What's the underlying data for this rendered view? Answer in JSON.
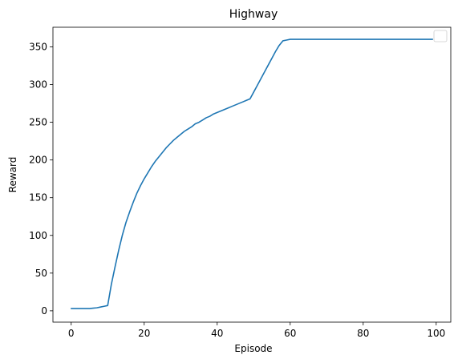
{
  "chart_data": {
    "type": "line",
    "title": "Highway",
    "xlabel": "Episode",
    "ylabel": "Reward",
    "xlim": [
      -5,
      104
    ],
    "ylim": [
      -15,
      376
    ],
    "x_ticks": [
      0,
      20,
      40,
      60,
      80,
      100
    ],
    "y_ticks": [
      0,
      50,
      100,
      150,
      200,
      250,
      300,
      350
    ],
    "grid": false,
    "legend": "top-right (empty)",
    "series": [
      {
        "color": "#1f77b4",
        "x": [
          0,
          1,
          2,
          3,
          4,
          5,
          6,
          7,
          8,
          9,
          10,
          11,
          12,
          13,
          14,
          15,
          16,
          17,
          18,
          19,
          20,
          21,
          22,
          23,
          24,
          25,
          26,
          27,
          28,
          29,
          30,
          31,
          32,
          33,
          34,
          35,
          36,
          37,
          38,
          39,
          40,
          41,
          42,
          43,
          44,
          45,
          46,
          47,
          48,
          49,
          50,
          51,
          52,
          53,
          54,
          55,
          56,
          57,
          58,
          59,
          60,
          61,
          62,
          63,
          64,
          65,
          66,
          67,
          68,
          69,
          70,
          71,
          72,
          73,
          74,
          75,
          76,
          77,
          78,
          79,
          80,
          81,
          82,
          83,
          84,
          85,
          86,
          87,
          88,
          89,
          90,
          91,
          92,
          93,
          94,
          95,
          96,
          97,
          98,
          99
        ],
        "y": [
          3,
          3,
          3,
          3,
          3,
          3,
          3.5,
          4,
          5,
          6,
          7,
          35,
          58,
          80,
          100,
          117,
          131,
          144,
          156,
          166,
          175,
          183,
          191,
          198,
          204,
          210,
          216,
          221,
          226,
          230,
          234,
          238,
          241,
          244,
          248,
          250,
          253,
          256,
          258,
          261,
          263,
          265,
          267,
          269,
          271,
          273,
          275,
          277,
          279,
          281,
          290,
          299,
          308,
          317,
          326,
          335,
          344,
          352,
          358,
          359,
          360,
          360,
          360,
          360,
          360,
          360,
          360,
          360,
          360,
          360,
          360,
          360,
          360,
          360,
          360,
          360,
          360,
          360,
          360,
          360,
          360,
          360,
          360,
          360,
          360,
          360,
          360,
          360,
          360,
          360,
          360,
          360,
          360,
          360,
          360,
          360,
          360,
          360,
          360,
          360
        ]
      }
    ]
  }
}
